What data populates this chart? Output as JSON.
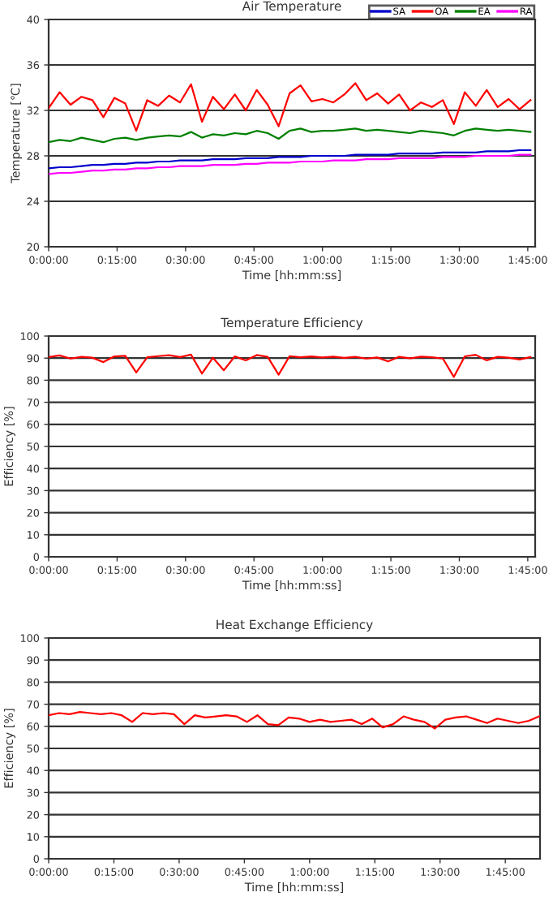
{
  "chart_data": [
    {
      "type": "line",
      "title": "Air Temperature",
      "xlabel": "Time [hh:mm:ss]",
      "ylabel": "Temperature [℃]",
      "x": [
        0,
        0.04,
        0.08,
        0.12,
        0.16,
        0.2,
        0.24,
        0.28,
        0.32,
        0.36,
        0.4,
        0.44,
        0.48,
        0.52,
        0.56,
        0.6,
        0.64,
        0.68,
        0.72,
        0.76,
        0.8,
        0.84,
        0.88,
        0.92,
        0.96,
        1.0,
        1.04,
        1.08,
        1.12,
        1.16,
        1.2,
        1.24,
        1.28,
        1.32,
        1.36,
        1.4,
        1.44,
        1.48,
        1.52,
        1.56,
        1.6,
        1.64,
        1.68,
        1.72,
        1.76
      ],
      "series": [
        {
          "name": "SA",
          "color": "#0000cc",
          "values": [
            26.9,
            27.0,
            27.0,
            27.1,
            27.2,
            27.2,
            27.3,
            27.3,
            27.4,
            27.4,
            27.5,
            27.5,
            27.6,
            27.6,
            27.6,
            27.7,
            27.7,
            27.7,
            27.8,
            27.8,
            27.8,
            27.9,
            27.9,
            27.9,
            28.0,
            28.0,
            28.0,
            28.0,
            28.1,
            28.1,
            28.1,
            28.1,
            28.2,
            28.2,
            28.2,
            28.2,
            28.3,
            28.3,
            28.3,
            28.3,
            28.4,
            28.4,
            28.4,
            28.5,
            28.5
          ]
        },
        {
          "name": "OA",
          "color": "#ff0000",
          "values": [
            32.2,
            33.6,
            32.5,
            33.2,
            32.9,
            31.4,
            33.1,
            32.6,
            30.2,
            32.9,
            32.4,
            33.3,
            32.7,
            34.3,
            31.0,
            33.2,
            32.1,
            33.4,
            32.0,
            33.8,
            32.5,
            30.6,
            33.5,
            34.2,
            32.8,
            33.0,
            32.7,
            33.4,
            34.4,
            32.9,
            33.5,
            32.6,
            33.4,
            32.0,
            32.7,
            32.3,
            32.9,
            30.8,
            33.6,
            32.4,
            33.8,
            32.3,
            33.0,
            32.1,
            32.9
          ]
        },
        {
          "name": "EA",
          "color": "#008000",
          "values": [
            29.2,
            29.4,
            29.3,
            29.6,
            29.4,
            29.2,
            29.5,
            29.6,
            29.4,
            29.6,
            29.7,
            29.8,
            29.7,
            30.1,
            29.6,
            29.9,
            29.8,
            30.0,
            29.9,
            30.2,
            30.0,
            29.5,
            30.2,
            30.4,
            30.1,
            30.2,
            30.2,
            30.3,
            30.4,
            30.2,
            30.3,
            30.2,
            30.1,
            30.0,
            30.2,
            30.1,
            30.0,
            29.8,
            30.2,
            30.4,
            30.3,
            30.2,
            30.3,
            30.2,
            30.1
          ]
        },
        {
          "name": "RA",
          "color": "#ff00ff",
          "values": [
            26.4,
            26.5,
            26.5,
            26.6,
            26.7,
            26.7,
            26.8,
            26.8,
            26.9,
            26.9,
            27.0,
            27.0,
            27.1,
            27.1,
            27.1,
            27.2,
            27.2,
            27.2,
            27.3,
            27.3,
            27.4,
            27.4,
            27.4,
            27.5,
            27.5,
            27.5,
            27.6,
            27.6,
            27.6,
            27.7,
            27.7,
            27.7,
            27.8,
            27.8,
            27.8,
            27.8,
            27.9,
            27.9,
            27.9,
            28.0,
            28.0,
            28.0,
            28.0,
            28.1,
            28.1
          ]
        }
      ],
      "xlim": [
        0,
        1.777
      ],
      "ylim": [
        20,
        40
      ],
      "yticks": [
        20,
        24,
        28,
        32,
        36,
        40
      ],
      "xticks": [
        {
          "value": 0,
          "label": "0:00:00"
        },
        {
          "value": 0.25,
          "label": "0:15:00"
        },
        {
          "value": 0.5,
          "label": "0:30:00"
        },
        {
          "value": 0.75,
          "label": "0:45:00"
        },
        {
          "value": 1.0,
          "label": "1:00:00"
        },
        {
          "value": 1.25,
          "label": "1:15:00"
        },
        {
          "value": 1.5,
          "label": "1:30:00"
        },
        {
          "value": 1.75,
          "label": "1:45:00"
        }
      ],
      "grid": "y",
      "legend": "top right",
      "marker": "none",
      "line_style": "solid"
    },
    {
      "type": "line",
      "title": "Temperature Efficiency",
      "xlabel": "Time [hh:mm:ss]",
      "ylabel": "Efficiency [%]",
      "x": [
        0,
        0.04,
        0.08,
        0.12,
        0.16,
        0.2,
        0.24,
        0.28,
        0.32,
        0.36,
        0.4,
        0.44,
        0.48,
        0.52,
        0.56,
        0.6,
        0.64,
        0.68,
        0.72,
        0.76,
        0.8,
        0.84,
        0.88,
        0.92,
        0.96,
        1.0,
        1.04,
        1.08,
        1.12,
        1.16,
        1.2,
        1.24,
        1.28,
        1.32,
        1.36,
        1.4,
        1.44,
        1.48,
        1.52,
        1.56,
        1.6,
        1.64,
        1.68,
        1.72,
        1.76
      ],
      "series": [
        {
          "color": "#ff0000",
          "values": [
            90.5,
            91.2,
            89.8,
            90.6,
            90.2,
            88.2,
            90.8,
            91.0,
            83.5,
            90.4,
            90.9,
            91.3,
            90.5,
            91.6,
            83.0,
            90.2,
            84.5,
            90.8,
            89.0,
            91.4,
            90.6,
            82.5,
            90.9,
            90.4,
            90.8,
            90.3,
            90.7,
            90.1,
            90.6,
            89.8,
            90.3,
            88.5,
            90.6,
            89.9,
            90.7,
            90.4,
            89.8,
            81.5,
            90.8,
            91.5,
            89.0,
            90.6,
            90.2,
            89.4,
            90.5
          ]
        }
      ],
      "xlim": [
        0,
        1.777
      ],
      "ylim": [
        0,
        100
      ],
      "yticks": [
        0,
        10,
        20,
        30,
        40,
        50,
        60,
        70,
        80,
        90,
        100
      ],
      "xticks": [
        {
          "value": 0,
          "label": "0:00:00"
        },
        {
          "value": 0.25,
          "label": "0:15:00"
        },
        {
          "value": 0.5,
          "label": "0:30:00"
        },
        {
          "value": 0.75,
          "label": "0:45:00"
        },
        {
          "value": 1.0,
          "label": "1:00:00"
        },
        {
          "value": 1.25,
          "label": "1:15:00"
        },
        {
          "value": 1.5,
          "label": "1:30:00"
        },
        {
          "value": 1.75,
          "label": "1:45:00"
        }
      ],
      "grid": "y",
      "marker": "none",
      "line_style": "solid"
    },
    {
      "type": "line",
      "title": "Heat Exchange Efficiency",
      "xlabel": "Time [hh:mm:ss]",
      "ylabel": "Efficiency [%]",
      "x": [
        0,
        0.04,
        0.08,
        0.12,
        0.16,
        0.2,
        0.24,
        0.28,
        0.32,
        0.36,
        0.4,
        0.44,
        0.48,
        0.52,
        0.56,
        0.6,
        0.64,
        0.68,
        0.72,
        0.76,
        0.8,
        0.84,
        0.88,
        0.92,
        0.96,
        1.0,
        1.04,
        1.08,
        1.12,
        1.16,
        1.2,
        1.24,
        1.28,
        1.32,
        1.36,
        1.4,
        1.44,
        1.48,
        1.52,
        1.56,
        1.6,
        1.64,
        1.68,
        1.72,
        1.76,
        1.8,
        1.84,
        1.88
      ],
      "series": [
        {
          "color": "#ff0000",
          "values": [
            65,
            66,
            65.5,
            66.5,
            66,
            65.5,
            66,
            65,
            62,
            66,
            65.5,
            66,
            65.5,
            61,
            65,
            64,
            64.5,
            65,
            64.5,
            62,
            65,
            61,
            60.5,
            64,
            63.5,
            62,
            63,
            62,
            62.5,
            63,
            61,
            63.5,
            59.5,
            61,
            64.5,
            63,
            62,
            59,
            63,
            64,
            64.5,
            63,
            61.5,
            63.5,
            62.5,
            61.5,
            62.5,
            64.5
          ]
        }
      ],
      "xlim": [
        0,
        1.883
      ],
      "ylim": [
        0,
        100
      ],
      "yticks": [
        0,
        10,
        20,
        30,
        40,
        50,
        60,
        70,
        80,
        90,
        100
      ],
      "xticks": [
        {
          "value": 0,
          "label": "0:00:00"
        },
        {
          "value": 0.25,
          "label": "0:15:00"
        },
        {
          "value": 0.5,
          "label": "0:30:00"
        },
        {
          "value": 0.75,
          "label": "0:45:00"
        },
        {
          "value": 1.0,
          "label": "1:00:00"
        },
        {
          "value": 1.25,
          "label": "1:15:00"
        },
        {
          "value": 1.5,
          "label": "1:30:00"
        },
        {
          "value": 1.75,
          "label": "1:45:00"
        }
      ],
      "grid": "y",
      "marker": "none",
      "line_style": "solid"
    }
  ]
}
